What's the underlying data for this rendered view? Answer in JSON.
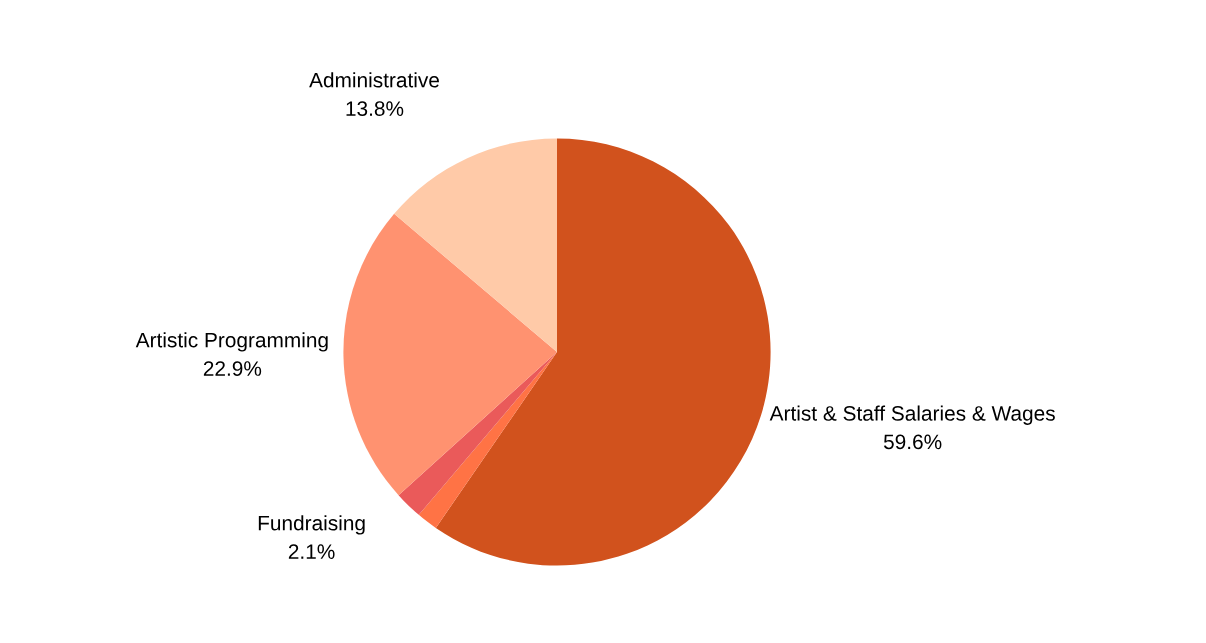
{
  "chart_data": {
    "type": "pie",
    "categories": [
      "Artist & Staff Salaries & Wages",
      null,
      "Fundraising",
      "Artistic Programming",
      "Administrative"
    ],
    "values": [
      59.6,
      1.6,
      2.1,
      22.9,
      13.8
    ],
    "value_labels": [
      "59.6%",
      null,
      "2.1%",
      "22.9%",
      "13.8%"
    ],
    "colors": [
      "#d1521d",
      "#ff7345",
      "#ea5a5a",
      "#ff9270",
      "#ffcaa8"
    ],
    "legend": false
  }
}
